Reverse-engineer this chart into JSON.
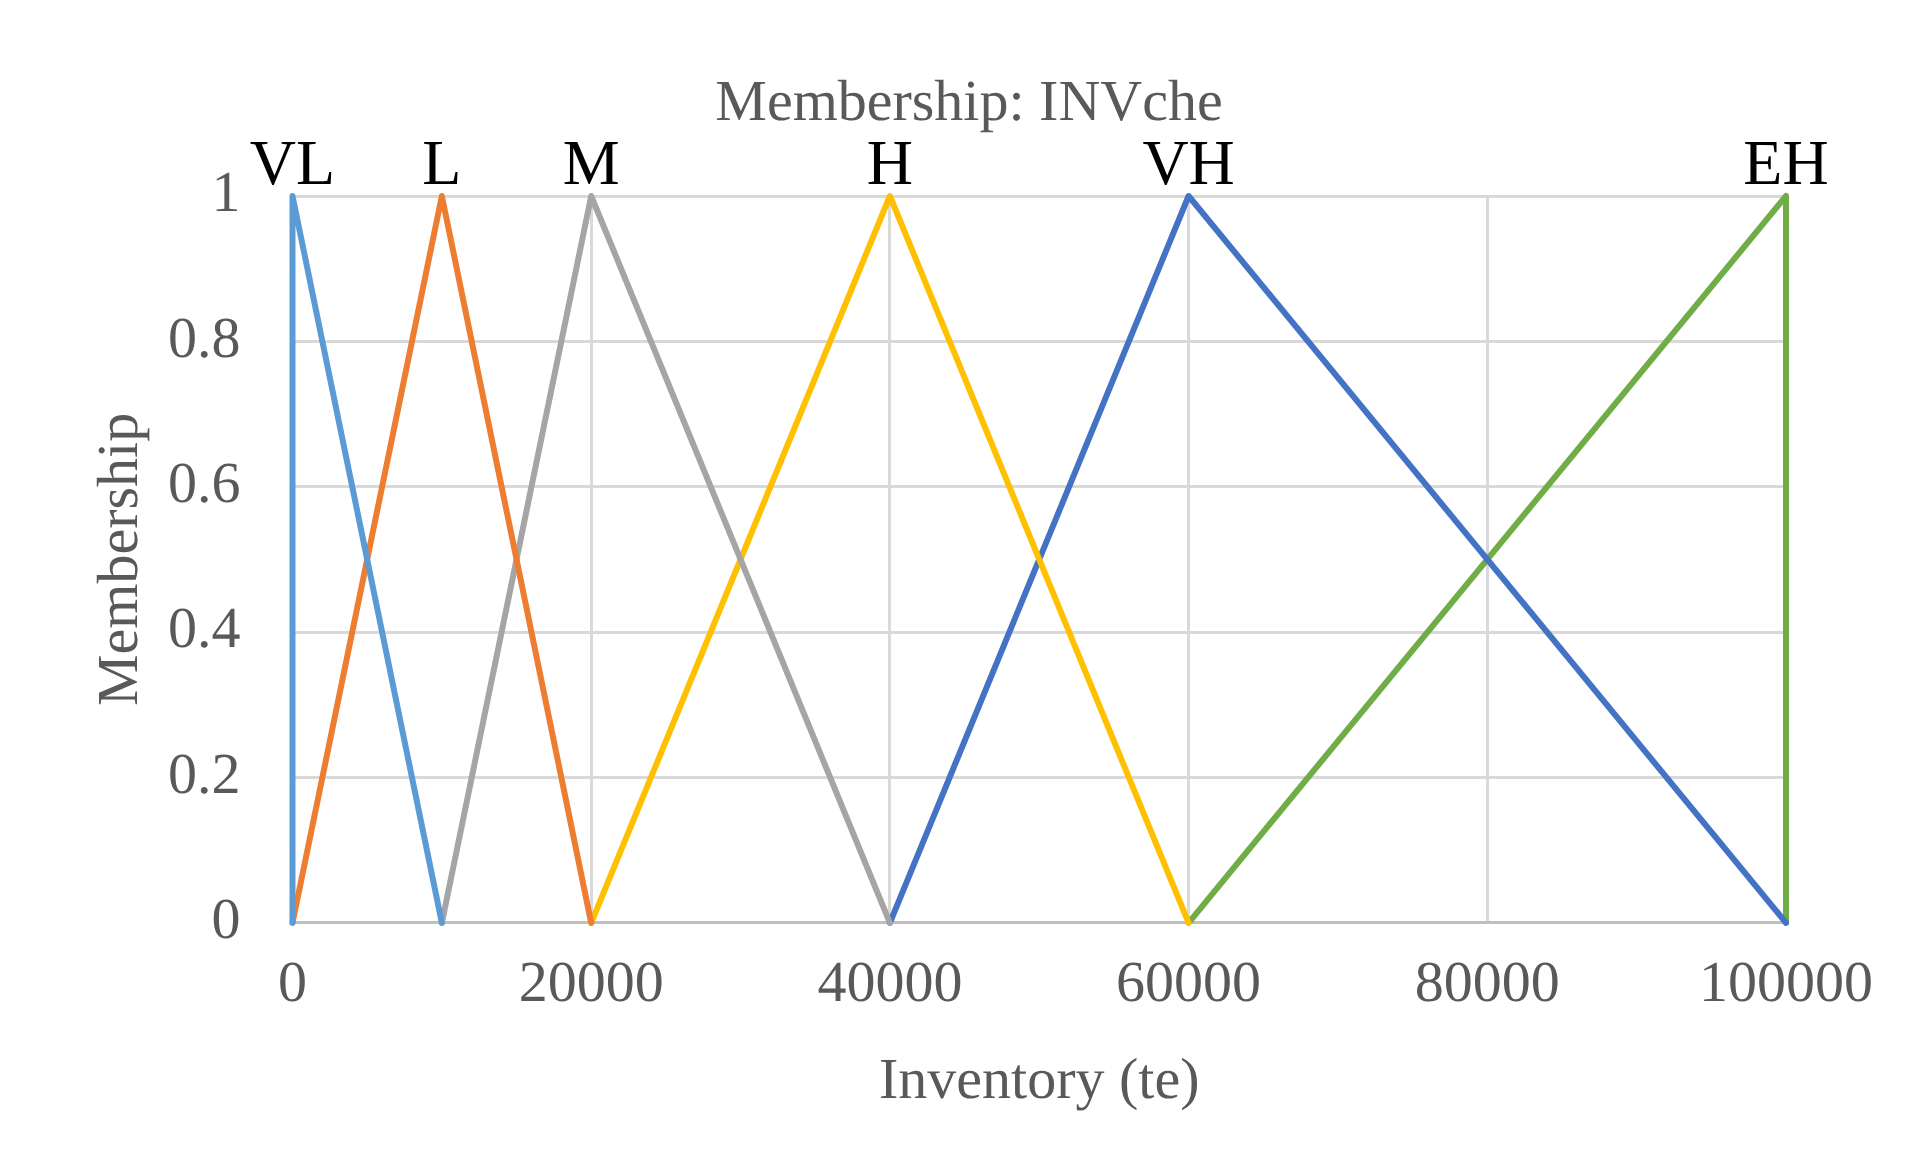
{
  "chart_data": {
    "type": "line",
    "title": "Membership: INVche",
    "xlabel": "Inventory (te)",
    "ylabel": "Membership",
    "xlim": [
      0,
      100000
    ],
    "xticks": [
      0,
      20000,
      40000,
      60000,
      80000,
      100000
    ],
    "ylim": [
      0,
      1
    ],
    "yticks": [
      0,
      0.2,
      0.4,
      0.6,
      0.8,
      1
    ],
    "grid": true,
    "marker": "none",
    "line_style": "solid",
    "series": [
      {
        "name": "VL",
        "color": "#5b9bd5",
        "x": [
          0,
          0,
          10000
        ],
        "values": [
          0,
          1,
          0
        ]
      },
      {
        "name": "L",
        "color": "#ed7d31",
        "x": [
          0,
          10000,
          20000
        ],
        "values": [
          0,
          1,
          0
        ]
      },
      {
        "name": "M",
        "color": "#a5a5a5",
        "x": [
          10000,
          20000,
          40000
        ],
        "values": [
          0,
          1,
          0
        ]
      },
      {
        "name": "H",
        "color": "#ffc000",
        "x": [
          20000,
          40000,
          60000
        ],
        "values": [
          0,
          1,
          0
        ]
      },
      {
        "name": "VH",
        "color": "#4472c4",
        "x": [
          40000,
          60000,
          100000
        ],
        "values": [
          0,
          1,
          0
        ]
      },
      {
        "name": "EH",
        "color": "#70ad47",
        "x": [
          60000,
          100000,
          100000
        ],
        "values": [
          0,
          1,
          0
        ]
      }
    ]
  }
}
